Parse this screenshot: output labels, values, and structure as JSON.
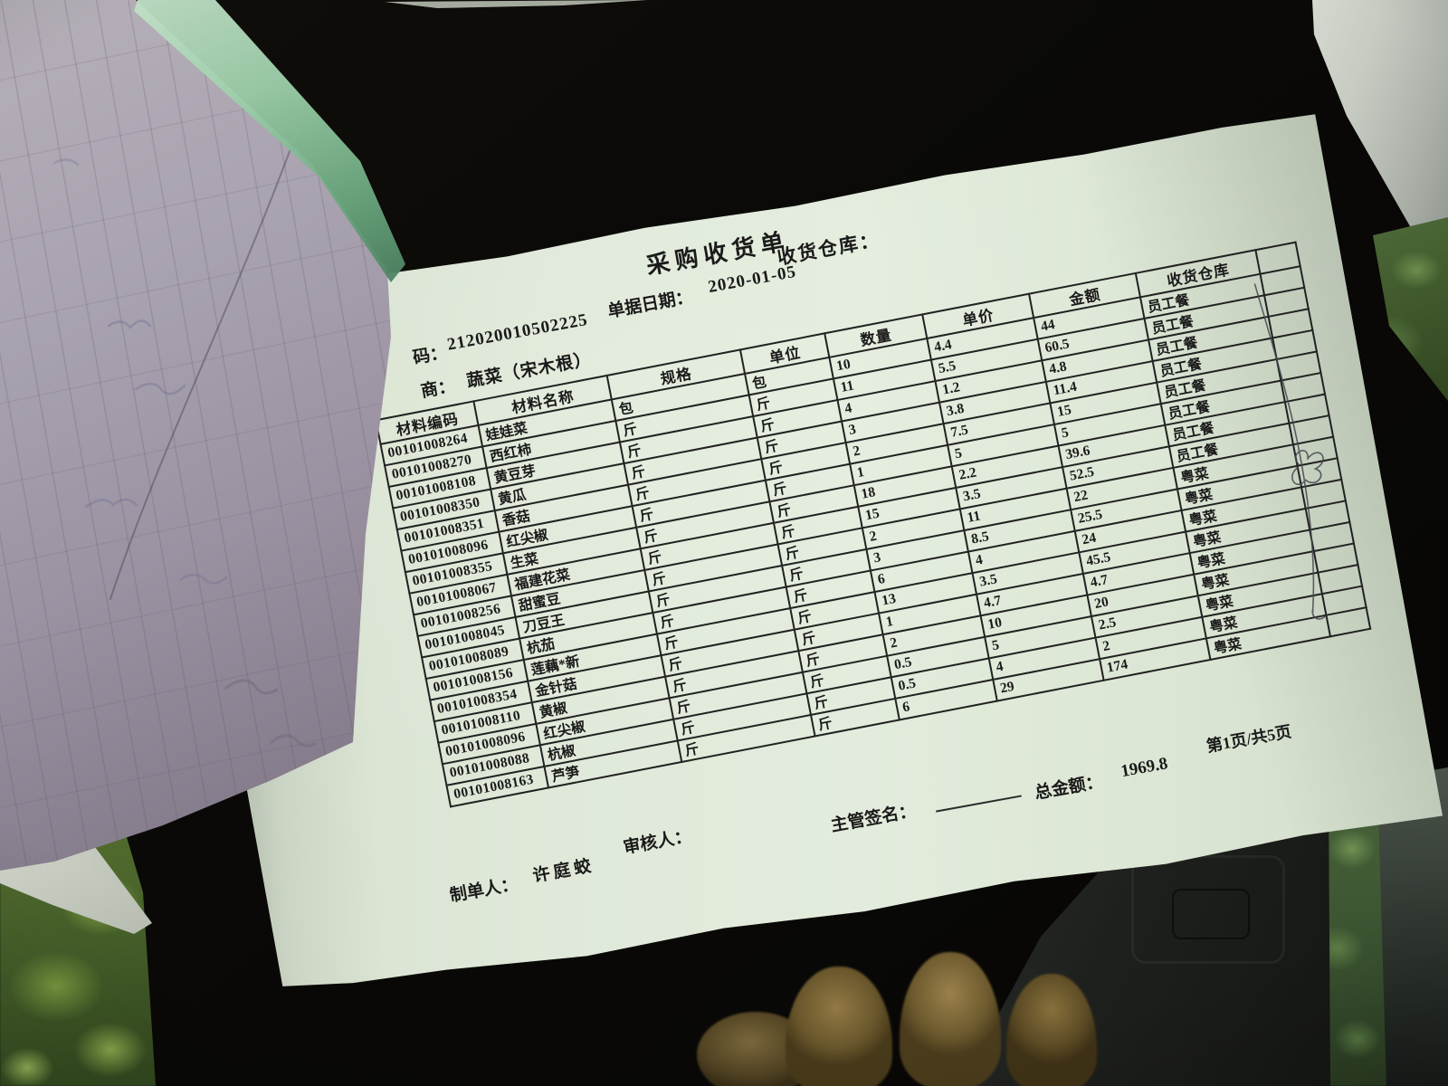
{
  "doc": {
    "title": "采购收货单",
    "warehouse_label": "收货仓库：",
    "meta": {
      "code_label": "码：",
      "code_value": "212020010502225",
      "date_label": "单据日期：",
      "date_value": "2020-01-05",
      "supplier_label": "商：",
      "supplier_value": "蔬菜（宋木根）"
    },
    "table": {
      "columns": [
        "材料编码",
        "材料名称",
        "规格",
        "单位",
        "数量",
        "单价",
        "金额",
        "收货仓库"
      ],
      "rows": [
        {
          "code": "00101008264",
          "name": "娃娃菜",
          "spec": "包",
          "unit": "包",
          "qty": "10",
          "price": "4.4",
          "amount": "44",
          "warehouse": "员工餐"
        },
        {
          "code": "00101008270",
          "name": "西红柿",
          "spec": "斤",
          "unit": "斤",
          "qty": "11",
          "price": "5.5",
          "amount": "60.5",
          "warehouse": "员工餐"
        },
        {
          "code": "00101008108",
          "name": "黄豆芽",
          "spec": "斤",
          "unit": "斤",
          "qty": "4",
          "price": "1.2",
          "amount": "4.8",
          "warehouse": "员工餐"
        },
        {
          "code": "00101008350",
          "name": "黄瓜",
          "spec": "斤",
          "unit": "斤",
          "qty": "3",
          "price": "3.8",
          "amount": "11.4",
          "warehouse": "员工餐"
        },
        {
          "code": "00101008351",
          "name": "香菇",
          "spec": "斤",
          "unit": "斤",
          "qty": "2",
          "price": "7.5",
          "amount": "15",
          "warehouse": "员工餐"
        },
        {
          "code": "00101008096",
          "name": "红尖椒",
          "spec": "斤",
          "unit": "斤",
          "qty": "1",
          "price": "5",
          "amount": "5",
          "warehouse": "员工餐"
        },
        {
          "code": "00101008355",
          "name": "生菜",
          "spec": "斤",
          "unit": "斤",
          "qty": "18",
          "price": "2.2",
          "amount": "39.6",
          "warehouse": "员工餐"
        },
        {
          "code": "00101008067",
          "name": "福建花菜",
          "spec": "斤",
          "unit": "斤",
          "qty": "15",
          "price": "3.5",
          "amount": "52.5",
          "warehouse": "员工餐"
        },
        {
          "code": "00101008256",
          "name": "甜蜜豆",
          "spec": "斤",
          "unit": "斤",
          "qty": "2",
          "price": "11",
          "amount": "22",
          "warehouse": "粤菜"
        },
        {
          "code": "00101008045",
          "name": "刀豆王",
          "spec": "斤",
          "unit": "斤",
          "qty": "3",
          "price": "8.5",
          "amount": "25.5",
          "warehouse": "粤菜"
        },
        {
          "code": "00101008089",
          "name": "杭茄",
          "spec": "斤",
          "unit": "斤",
          "qty": "6",
          "price": "4",
          "amount": "24",
          "warehouse": "粤菜"
        },
        {
          "code": "00101008156",
          "name": "莲藕*新",
          "spec": "斤",
          "unit": "斤",
          "qty": "13",
          "price": "3.5",
          "amount": "45.5",
          "warehouse": "粤菜"
        },
        {
          "code": "00101008354",
          "name": "金针菇",
          "spec": "斤",
          "unit": "斤",
          "qty": "1",
          "price": "4.7",
          "amount": "4.7",
          "warehouse": "粤菜"
        },
        {
          "code": "00101008110",
          "name": "黄椒",
          "spec": "斤",
          "unit": "斤",
          "qty": "2",
          "price": "10",
          "amount": "20",
          "warehouse": "粤菜"
        },
        {
          "code": "00101008096",
          "name": "红尖椒",
          "spec": "斤",
          "unit": "斤",
          "qty": "0.5",
          "price": "5",
          "amount": "2.5",
          "warehouse": "粤菜"
        },
        {
          "code": "00101008088",
          "name": "杭椒",
          "spec": "斤",
          "unit": "斤",
          "qty": "0.5",
          "price": "4",
          "amount": "2",
          "warehouse": "粤菜"
        },
        {
          "code": "00101008163",
          "name": "芦笋",
          "spec": "斤",
          "unit": "斤",
          "qty": "6",
          "price": "29",
          "amount": "174",
          "warehouse": "粤菜"
        }
      ]
    },
    "footer": {
      "maker_label": "制单人：",
      "maker_name": "许庭蛟",
      "auditor_label": "审核人：",
      "sign_label": "主管签名：",
      "total_label": "总金额：",
      "total_value": "1969.8",
      "page_info": "第1页/共5页"
    }
  }
}
